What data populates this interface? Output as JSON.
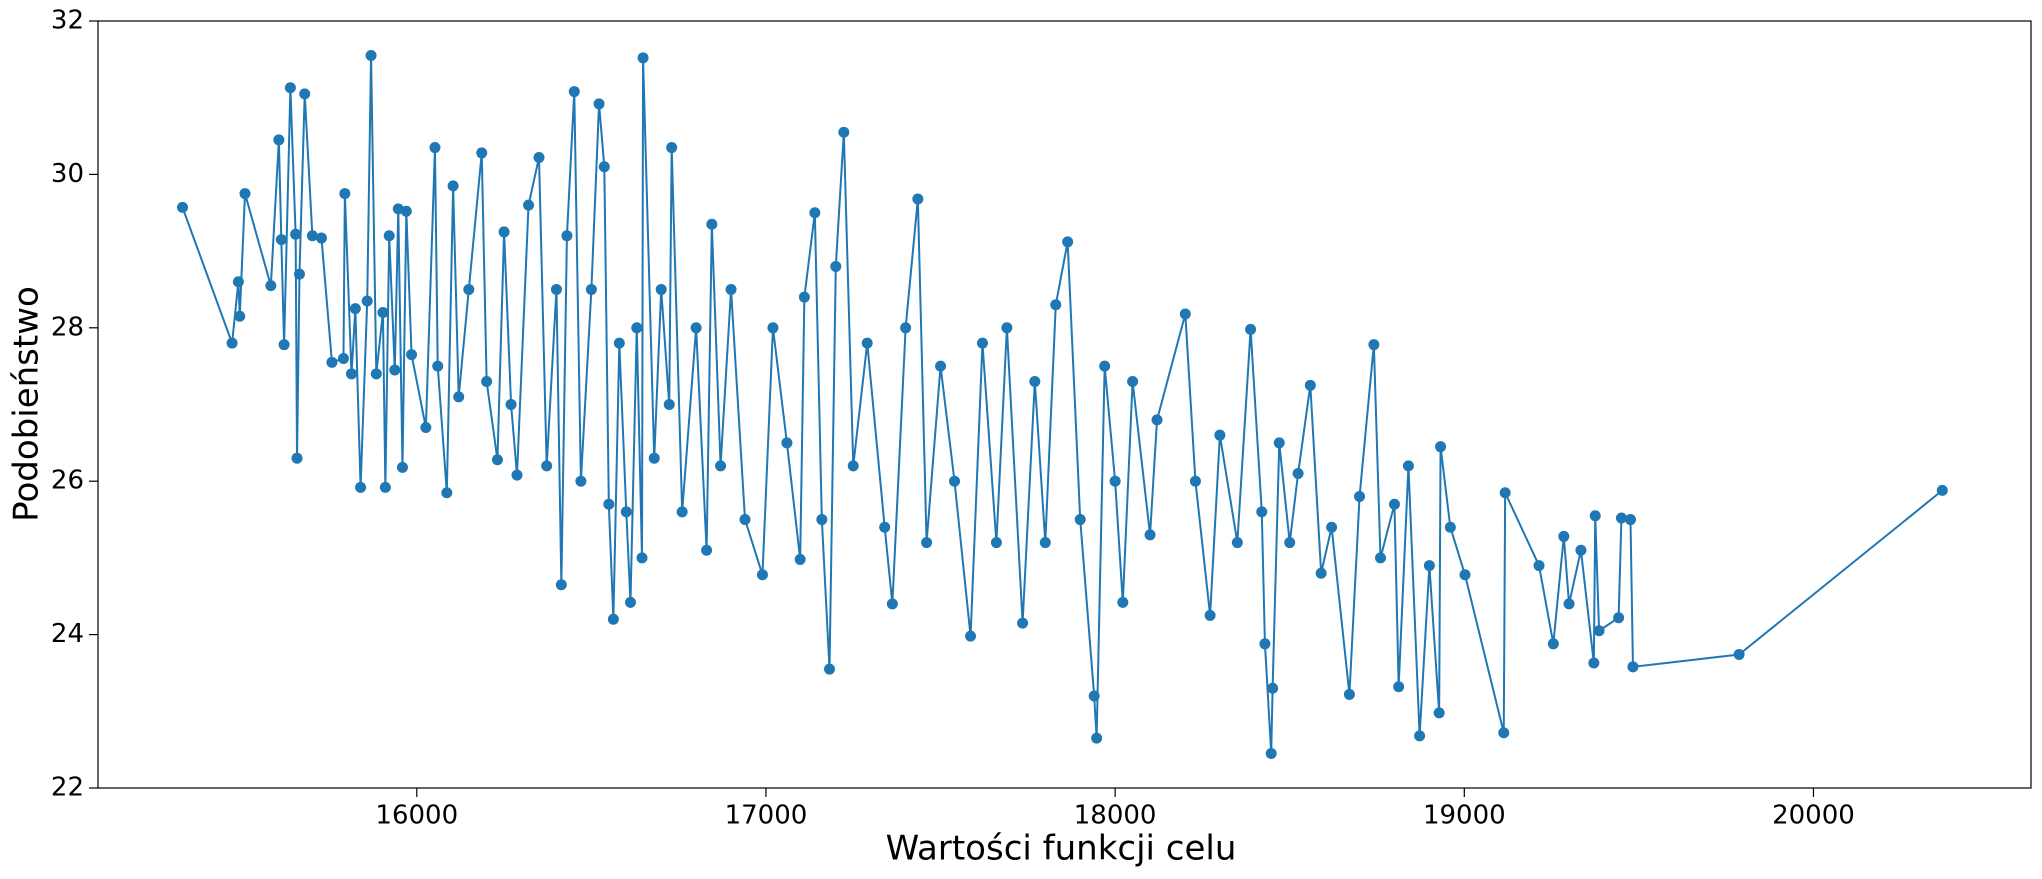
{
  "chart_data": {
    "type": "line",
    "color": "#1f77b4",
    "marker": "circle",
    "xlabel": "Wartości funkcji celu",
    "ylabel": "Podobieństwo",
    "xlim": [
      15087,
      20623
    ],
    "ylim": [
      22,
      32
    ],
    "xticks": [
      16000,
      17000,
      18000,
      19000,
      20000
    ],
    "yticks": [
      22,
      24,
      26,
      28,
      30,
      32
    ],
    "grid": false,
    "x": [
      15329,
      15471,
      15489,
      15493,
      15508,
      15582,
      15605,
      15612,
      15620,
      15638,
      15653,
      15657,
      15664,
      15679,
      15701,
      15727,
      15757,
      15790,
      15794,
      15813,
      15824,
      15839,
      15858,
      15869,
      15884,
      15903,
      15910,
      15921,
      15937,
      15947,
      15959,
      15970,
      15985,
      16026,
      16052,
      16060,
      16086,
      16104,
      16120,
      16149,
      16186,
      16200,
      16231,
      16250,
      16270,
      16287,
      16320,
      16350,
      16372,
      16400,
      16414,
      16430,
      16451,
      16470,
      16500,
      16522,
      16537,
      16550,
      16563,
      16580,
      16600,
      16612,
      16630,
      16645,
      16648,
      16680,
      16700,
      16723,
      16730,
      16760,
      16800,
      16830,
      16845,
      16870,
      16900,
      16940,
      16990,
      17020,
      17060,
      17098,
      17110,
      17140,
      17160,
      17182,
      17200,
      17223,
      17250,
      17290,
      17340,
      17362,
      17400,
      17435,
      17460,
      17500,
      17540,
      17586,
      17620,
      17660,
      17690,
      17735,
      17770,
      17800,
      17830,
      17864,
      17900,
      17940,
      17947,
      17970,
      18000,
      18022,
      18050,
      18100,
      18120,
      18201,
      18230,
      18272,
      18300,
      18350,
      18388,
      18420,
      18429,
      18447,
      18451,
      18470,
      18500,
      18524,
      18559,
      18590,
      18620,
      18671,
      18700,
      18741,
      18760,
      18800,
      18812,
      18840,
      18872,
      18900,
      18928,
      18932,
      18960,
      19002,
      19113,
      19117,
      19214,
      19255,
      19285,
      19300,
      19334,
      19371,
      19375,
      19386,
      19442,
      19450,
      19476,
      19483,
      19787,
      20369
    ],
    "values": [
      29.57,
      27.8,
      28.6,
      28.15,
      29.75,
      28.55,
      30.45,
      29.15,
      27.78,
      31.13,
      29.22,
      26.3,
      28.7,
      31.05,
      29.2,
      29.17,
      27.55,
      27.6,
      29.75,
      27.4,
      28.25,
      25.92,
      28.35,
      31.55,
      27.4,
      28.2,
      25.92,
      29.2,
      27.45,
      29.55,
      26.18,
      29.52,
      27.65,
      26.7,
      30.35,
      27.5,
      25.85,
      29.85,
      27.1,
      28.5,
      30.28,
      27.3,
      26.28,
      29.25,
      27.0,
      26.08,
      29.6,
      30.22,
      26.2,
      28.5,
      24.65,
      29.2,
      31.08,
      26.0,
      28.5,
      30.92,
      30.1,
      25.7,
      24.2,
      27.8,
      25.6,
      24.42,
      28.0,
      25.0,
      31.52,
      26.3,
      28.5,
      27.0,
      30.35,
      25.6,
      28.0,
      25.1,
      29.35,
      26.2,
      28.5,
      25.5,
      24.78,
      28.0,
      26.5,
      24.98,
      28.4,
      29.5,
      25.5,
      23.55,
      28.8,
      30.55,
      26.2,
      27.8,
      25.4,
      24.4,
      28.0,
      29.68,
      25.2,
      27.5,
      26.0,
      23.98,
      27.8,
      25.2,
      28.0,
      24.15,
      27.3,
      25.2,
      28.3,
      29.12,
      25.5,
      23.2,
      22.65,
      27.5,
      26.0,
      24.42,
      27.3,
      25.3,
      26.8,
      28.18,
      26.0,
      24.25,
      26.6,
      25.2,
      27.98,
      25.6,
      23.88,
      22.45,
      23.3,
      26.5,
      25.2,
      26.1,
      27.25,
      24.8,
      25.4,
      23.22,
      25.8,
      27.78,
      25.0,
      25.7,
      23.32,
      26.2,
      22.68,
      24.9,
      22.98,
      26.45,
      25.4,
      24.78,
      22.72,
      25.85,
      24.9,
      23.88,
      25.28,
      24.4,
      25.1,
      23.63,
      25.55,
      24.05,
      24.22,
      25.52,
      25.5,
      23.58,
      23.74,
      25.88
    ]
  }
}
